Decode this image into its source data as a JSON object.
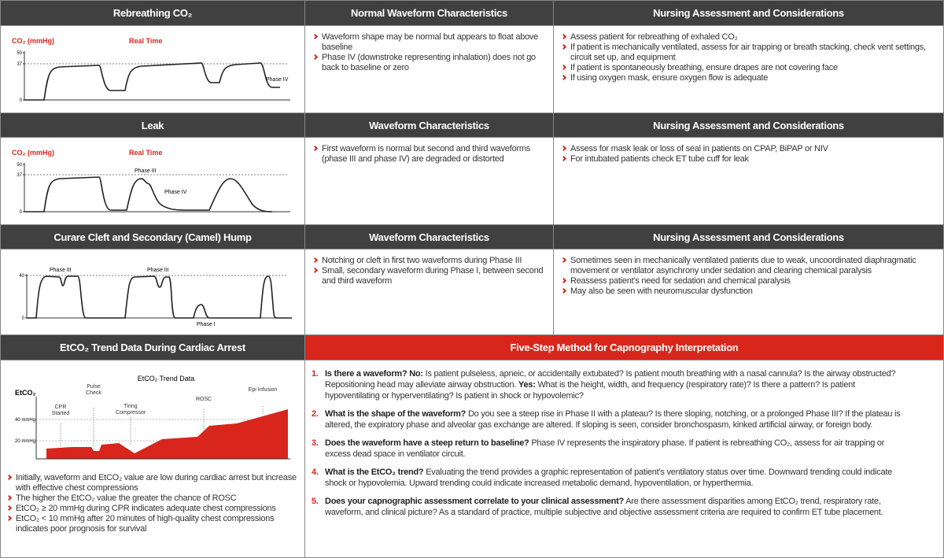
{
  "sections": [
    {
      "graph_header": "Rebreathing CO₂",
      "y_label": "CO₂ (mmHg)",
      "x_label": "Real Time",
      "yticks": [
        50,
        37,
        0
      ],
      "phase_labels": [
        "Phase IV"
      ],
      "waveform_header": "Normal Waveform Characteristics",
      "waveform_bullets": [
        "Waveform shape may be normal but appears to float above baseline",
        "Phase IV (downstroke representing inhalation) does not go back to baseline or zero"
      ],
      "nursing_header": "Nursing Assessment and Considerations",
      "nursing_bullets": [
        "Assess patient for rebreathing of exhaled CO₂",
        "If patient is mechanically ventilated, assess for air trapping or breath stacking, check vent settings, circuit set up, and equipment",
        "If patient is spontaneously breathing, ensure drapes are not covering face",
        "If using oxygen mask, ensure oxygen flow is adequate"
      ]
    },
    {
      "graph_header": "Leak",
      "y_label": "CO₂ (mmHg)",
      "x_label": "Real Time",
      "yticks": [
        50,
        37,
        0
      ],
      "phase_labels": [
        "Phase III",
        "Phase IV"
      ],
      "waveform_header": "Waveform Characteristics",
      "waveform_bullets": [
        "First waveform is normal but second and third waveforms (phase III and phase IV) are degraded or distorted"
      ],
      "nursing_header": "Nursing Assessment and Considerations",
      "nursing_bullets": [
        "Assess for mask leak or loss of seal in patients on CPAP, BiPAP or NIV",
        "For intubated patients check ET tube cuff for leak"
      ]
    },
    {
      "graph_header": "Curare Cleft and Secondary (Camel) Hump",
      "yticks": [
        40,
        0
      ],
      "phase_labels": [
        "Phase III",
        "Phase III",
        "Phase I"
      ],
      "waveform_header": "Waveform Characteristics",
      "waveform_bullets": [
        "Notching or cleft in first two waveforms during Phase III",
        "Small, secondary waveform during Phase I, between second and third waveform"
      ],
      "nursing_header": "Nursing Assessment and Considerations",
      "nursing_bullets": [
        "Sometimes seen in mechanically ventilated patients due to weak, uncoordinated diaphragmatic movement or ventilator asynchrony under sedation and clearing chemical paralysis",
        "Reassess patient’s need for sedation and chemical paralysis",
        "May also be seen with neuromuscular dysfunction"
      ]
    }
  ],
  "trend": {
    "header": "EtCO₂ Trend Data During Cardiac Arrest",
    "chart_title": "EtCO₂ Trend Data",
    "y_label": "EtCO₂",
    "levels": [
      "40 mmHg",
      "20 mmHg"
    ],
    "events": [
      "CPR Started",
      "Pulse Check",
      "Tiring Compressor",
      "ROSC",
      "Epi Infusion"
    ],
    "bullets": [
      "Initially, waveform and EtCO₂ value are low during cardiac arrest but increase with effective chest compressions",
      "The higher the EtCO₂ value the greater the chance of ROSC",
      "EtCO₂ ≥ 20 mmHg during CPR indicates adequate chest compressions",
      "EtCO₂ < 10 mmHg after 20 minutes of high-quality chest compressions indicates poor prognosis for survival"
    ]
  },
  "five_step": {
    "header": "Five-Step Method for Capnography Interpretation",
    "steps": [
      {
        "number": "1.",
        "parts": [
          "Is there a waveform? No:",
          " Is patient pulseless, apneic, or accidentally extubated? Is patient mouth breathing with a nasal cannula? Is the airway obstructed? Repositioning head may alleviate airway obstruction. ",
          "Yes:",
          " What is the height, width, and frequency (respiratory rate)? Is there a pattern? Is patient hypoventilating or hyperventilating? Is patient in shock or hypovolemic?"
        ]
      },
      {
        "number": "2.",
        "parts": [
          "What is the shape of the waveform?",
          " Do you see a steep rise in Phase II with a plateau? Is there sloping, notching, or a prolonged Phase III? If the plateau is altered, the expiratory phase and alveolar gas exchange are altered. If sloping is seen, consider bronchospasm, kinked artificial airway, or foreign body."
        ]
      },
      {
        "number": "3.",
        "parts": [
          "Does the waveform have a steep return to baseline?",
          " Phase IV represents the inspiratory phase. If patient is rebreathing CO₂, assess for air trapping or excess dead space in ventilator circuit."
        ]
      },
      {
        "number": "4.",
        "parts": [
          "What is the EtCO₂ trend?",
          " Evaluating the trend provides a graphic representation of patient’s ventilatory status over time. Downward trending could indicate shock or hypovolemia. Upward trending could indicate increased metabolic demand, hypoventilation, or hyperthermia."
        ]
      },
      {
        "number": "5.",
        "parts": [
          "Does your capnographic assessment correlate to your clinical assessment?",
          " Are there assessment disparities among EtCO₂ trend, respiratory rate, waveform, and clinical picture? As a standard of practice, multiple subjective and objective assessment criteria are required to confirm ET tube placement."
        ]
      }
    ]
  }
}
